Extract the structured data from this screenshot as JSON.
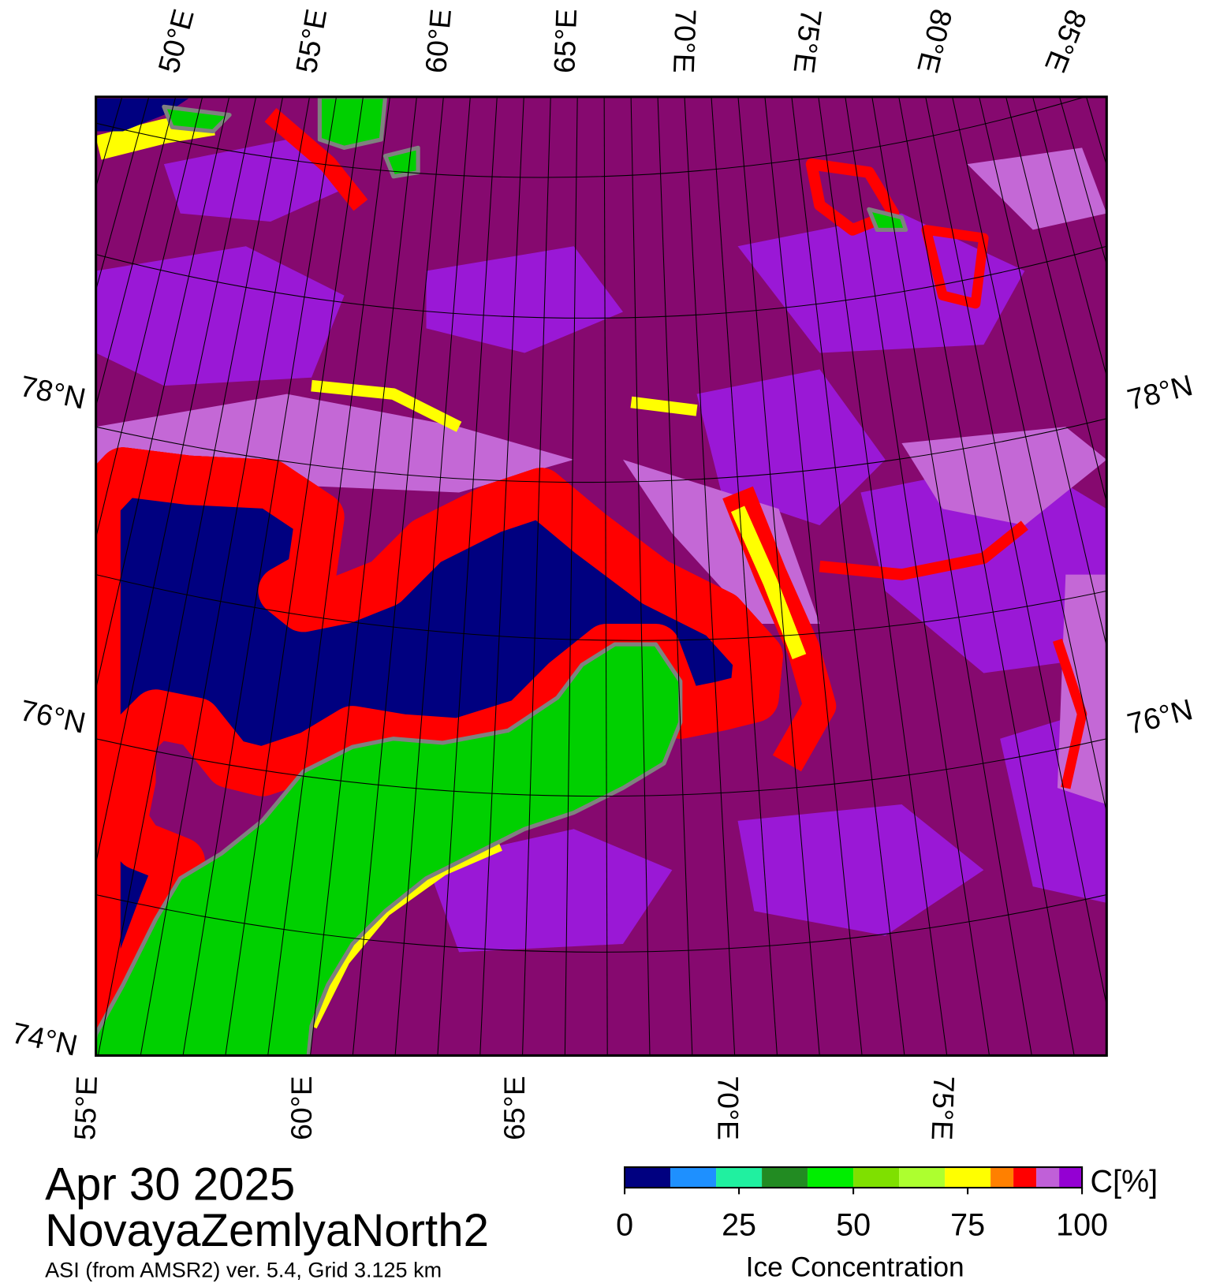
{
  "map": {
    "lat_labels_left": [
      "78°N",
      "76°N",
      "74°N"
    ],
    "lat_labels_right": [
      "78°N",
      "76°N"
    ],
    "lon_labels_top": [
      "50°E",
      "55°E",
      "60°E",
      "65°E",
      "70°E",
      "75°E",
      "80°E",
      "85°E"
    ],
    "lon_labels_bottom": [
      "55°E",
      "60°E",
      "65°E",
      "70°E",
      "75°E"
    ]
  },
  "caption": {
    "date": "Apr 30 2025",
    "region": "NovayaZemlyaNorth2",
    "source": "ASI (from AMSR2) ver. 5.4,  Grid 3.125 km"
  },
  "colorbar": {
    "lim": [
      0,
      100
    ],
    "bounds": [
      0,
      10,
      20,
      30,
      40,
      50,
      60,
      70,
      80,
      85,
      90,
      95,
      100
    ],
    "colors": [
      "#000080",
      "#1e90ff",
      "#20f0a0",
      "#228b22",
      "#00ee00",
      "#7fe000",
      "#adff2f",
      "#ffff00",
      "#ff8000",
      "#ff0000",
      "#c060d8",
      "#9400d3"
    ],
    "ticks": [
      0,
      25,
      50,
      75,
      100
    ],
    "unit_label": "C[%]",
    "title": "Ice Concentration"
  }
}
